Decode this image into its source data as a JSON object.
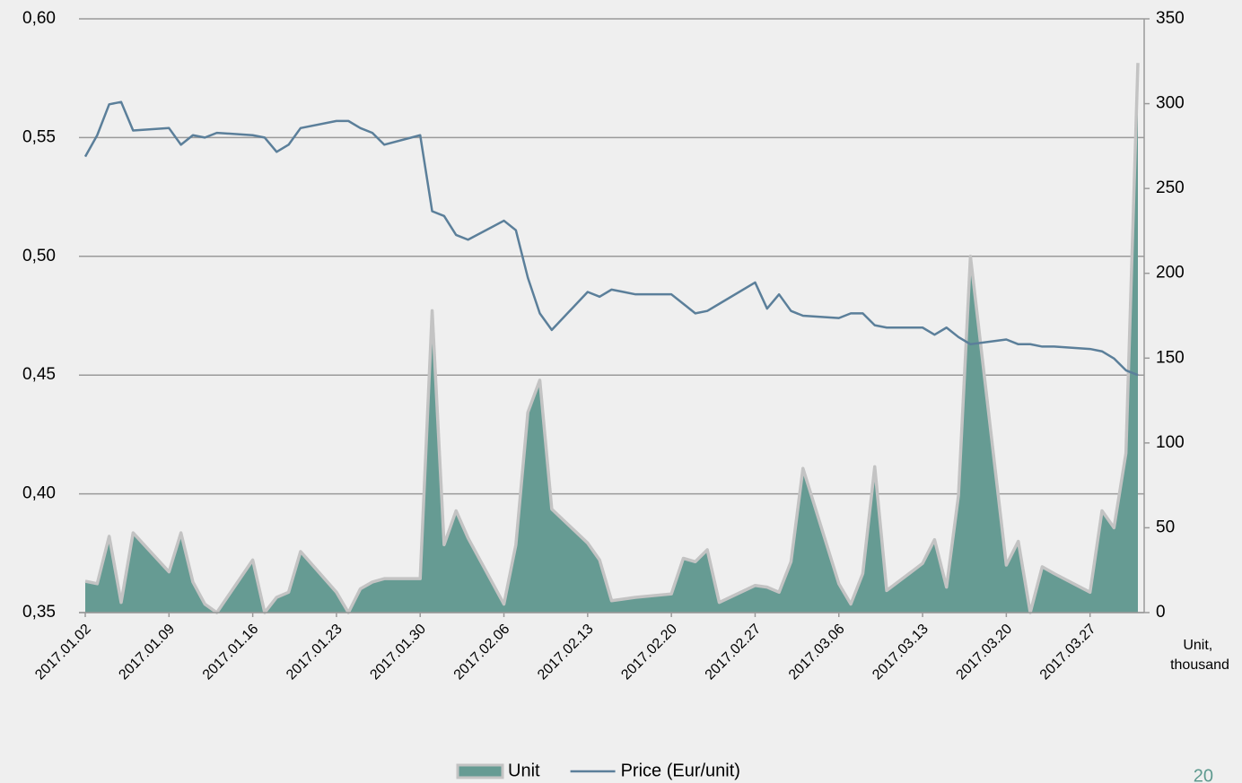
{
  "chart_data": {
    "type": "combo",
    "x": [
      "2017.01.02",
      "2017.01.03",
      "2017.01.04",
      "2017.01.05",
      "2017.01.06",
      "2017.01.09",
      "2017.01.10",
      "2017.01.11",
      "2017.01.12",
      "2017.01.13",
      "2017.01.16",
      "2017.01.17",
      "2017.01.18",
      "2017.01.19",
      "2017.01.20",
      "2017.01.23",
      "2017.01.24",
      "2017.01.25",
      "2017.01.26",
      "2017.01.27",
      "2017.01.30",
      "2017.01.31",
      "2017.02.01",
      "2017.02.02",
      "2017.02.03",
      "2017.02.06",
      "2017.02.07",
      "2017.02.08",
      "2017.02.09",
      "2017.02.10",
      "2017.02.13",
      "2017.02.14",
      "2017.02.15",
      "2017.02.16",
      "2017.02.17",
      "2017.02.20",
      "2017.02.21",
      "2017.02.22",
      "2017.02.23",
      "2017.02.24",
      "2017.02.27",
      "2017.02.28",
      "2017.03.01",
      "2017.03.02",
      "2017.03.03",
      "2017.03.06",
      "2017.03.07",
      "2017.03.08",
      "2017.03.09",
      "2017.03.10",
      "2017.03.13",
      "2017.03.14",
      "2017.03.15",
      "2017.03.16",
      "2017.03.17",
      "2017.03.20",
      "2017.03.21",
      "2017.03.22",
      "2017.03.23",
      "2017.03.24",
      "2017.03.27",
      "2017.03.28",
      "2017.03.29",
      "2017.03.30",
      "2017.03.31"
    ],
    "xlim": [
      "2017.01.02",
      "2017.03.31"
    ],
    "xticks": [
      "2017.01.02",
      "2017.01.09",
      "2017.01.16",
      "2017.01.23",
      "2017.01.30",
      "2017.02.06",
      "2017.02.13",
      "2017.02.20",
      "2017.02.27",
      "2017.03.06",
      "2017.03.13",
      "2017.03.20",
      "2017.03.27"
    ],
    "ylim": [
      0.35,
      0.6
    ],
    "yticks": [
      {
        "value": 0.35,
        "label": "0,35"
      },
      {
        "value": 0.4,
        "label": "0,40"
      },
      {
        "value": 0.45,
        "label": "0,45"
      },
      {
        "value": 0.5,
        "label": "0,50"
      },
      {
        "value": 0.55,
        "label": "0,55"
      },
      {
        "value": 0.6,
        "label": "0,60"
      }
    ],
    "y2lim": [
      0,
      350
    ],
    "y2ticks": [
      0,
      50,
      100,
      150,
      200,
      250,
      300,
      350
    ],
    "y2_label": "Unit, thousand",
    "grid": true,
    "legend": "bottom",
    "series": [
      {
        "name": "Unit",
        "type": "area",
        "axis": "y2",
        "color": "#669b93",
        "stroke": "#c3c3c3",
        "values": [
          18.5,
          17,
          45,
          6,
          47,
          24,
          47,
          18,
          5,
          0,
          31,
          0,
          9,
          12,
          36,
          12,
          0,
          14,
          18,
          20,
          20,
          178,
          40,
          60,
          44,
          5,
          40,
          118,
          137,
          61,
          41,
          31,
          7,
          8,
          9,
          11,
          32,
          30,
          37,
          6,
          16,
          15,
          12,
          30,
          85,
          17,
          5,
          23,
          86,
          13,
          29,
          43,
          15,
          69,
          210,
          28,
          42,
          0,
          27,
          23,
          12,
          60,
          50,
          94,
          324
        ]
      },
      {
        "name": "Price (Eur/unit)",
        "type": "line",
        "color": "#5b7f9a",
        "values": [
          0.542,
          0.551,
          0.564,
          0.565,
          0.553,
          0.554,
          0.547,
          0.551,
          0.55,
          0.552,
          0.551,
          0.55,
          0.544,
          0.547,
          0.554,
          0.557,
          0.557,
          0.554,
          0.552,
          0.547,
          0.551,
          0.519,
          0.517,
          0.509,
          0.507,
          0.515,
          0.511,
          0.491,
          0.476,
          0.469,
          0.485,
          0.483,
          0.486,
          0.485,
          0.484,
          0.484,
          0.48,
          0.476,
          0.477,
          0.48,
          0.489,
          0.478,
          0.484,
          0.477,
          0.475,
          0.474,
          0.476,
          0.476,
          0.471,
          0.47,
          0.47,
          0.467,
          0.47,
          0.466,
          0.463,
          0.465,
          0.463,
          0.463,
          0.462,
          0.462,
          0.461,
          0.46,
          0.457,
          0.452,
          0.45
        ]
      }
    ],
    "page_number": "20"
  }
}
